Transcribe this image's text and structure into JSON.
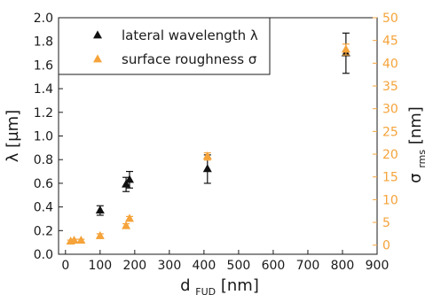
{
  "chart_data": {
    "type": "scatter",
    "x_axis": {
      "label_main": "d",
      "label_sub": "FUD",
      "label_unit": " [nm]",
      "range": [
        -20,
        900
      ],
      "ticks": [
        0,
        100,
        200,
        300,
        400,
        500,
        600,
        700,
        800,
        900
      ]
    },
    "y_axis_left": {
      "label": "λ [µm]",
      "range": [
        0.0,
        2.0
      ],
      "ticks": [
        0.0,
        0.2,
        0.4,
        0.6,
        0.8,
        1.0,
        1.2,
        1.4,
        1.6,
        1.8,
        2.0
      ],
      "tick_labels": [
        "0.0",
        "0.2",
        "0.4",
        "0.6",
        "0.8",
        "1.0",
        "1.2",
        "1.4",
        "1.6",
        "1.8",
        "2.0"
      ],
      "color": "#1a1a1a"
    },
    "y_axis_right": {
      "label_main": "σ",
      "label_sub": "rms",
      "label_unit": " [nm]",
      "range": [
        -2,
        50
      ],
      "ticks": [
        0,
        5,
        10,
        15,
        20,
        25,
        30,
        35,
        40,
        45,
        50
      ],
      "color": "#f5a33a"
    },
    "series": [
      {
        "name": "lateral wavelength λ",
        "axis": "left",
        "color": "#111111",
        "marker": "triangle",
        "points": [
          {
            "x": 100,
            "y": 0.37,
            "err": 0.04
          },
          {
            "x": 175,
            "y": 0.59,
            "err": 0.06
          },
          {
            "x": 185,
            "y": 0.63,
            "err": 0.07
          },
          {
            "x": 410,
            "y": 0.72,
            "err": 0.12
          },
          {
            "x": 810,
            "y": 1.7,
            "err": 0.17
          }
        ]
      },
      {
        "name": "surface roughness σ",
        "axis": "right",
        "color": "#f5a33a",
        "marker": "triangle",
        "points": [
          {
            "x": 15,
            "y": 0.8,
            "err": 0.3
          },
          {
            "x": 25,
            "y": 1.0,
            "err": 0.3
          },
          {
            "x": 45,
            "y": 1.0,
            "err": 0.3
          },
          {
            "x": 100,
            "y": 2.0,
            "err": 0.5
          },
          {
            "x": 175,
            "y": 4.2,
            "err": 0.5
          },
          {
            "x": 185,
            "y": 5.8,
            "err": 0.5
          },
          {
            "x": 410,
            "y": 19.5,
            "err": 0.8
          },
          {
            "x": 810,
            "y": 43.0,
            "err": 1.2
          }
        ]
      }
    ],
    "legend": {
      "position": "top-left",
      "entries": [
        "lateral wavelength λ",
        "surface roughness σ"
      ]
    }
  }
}
